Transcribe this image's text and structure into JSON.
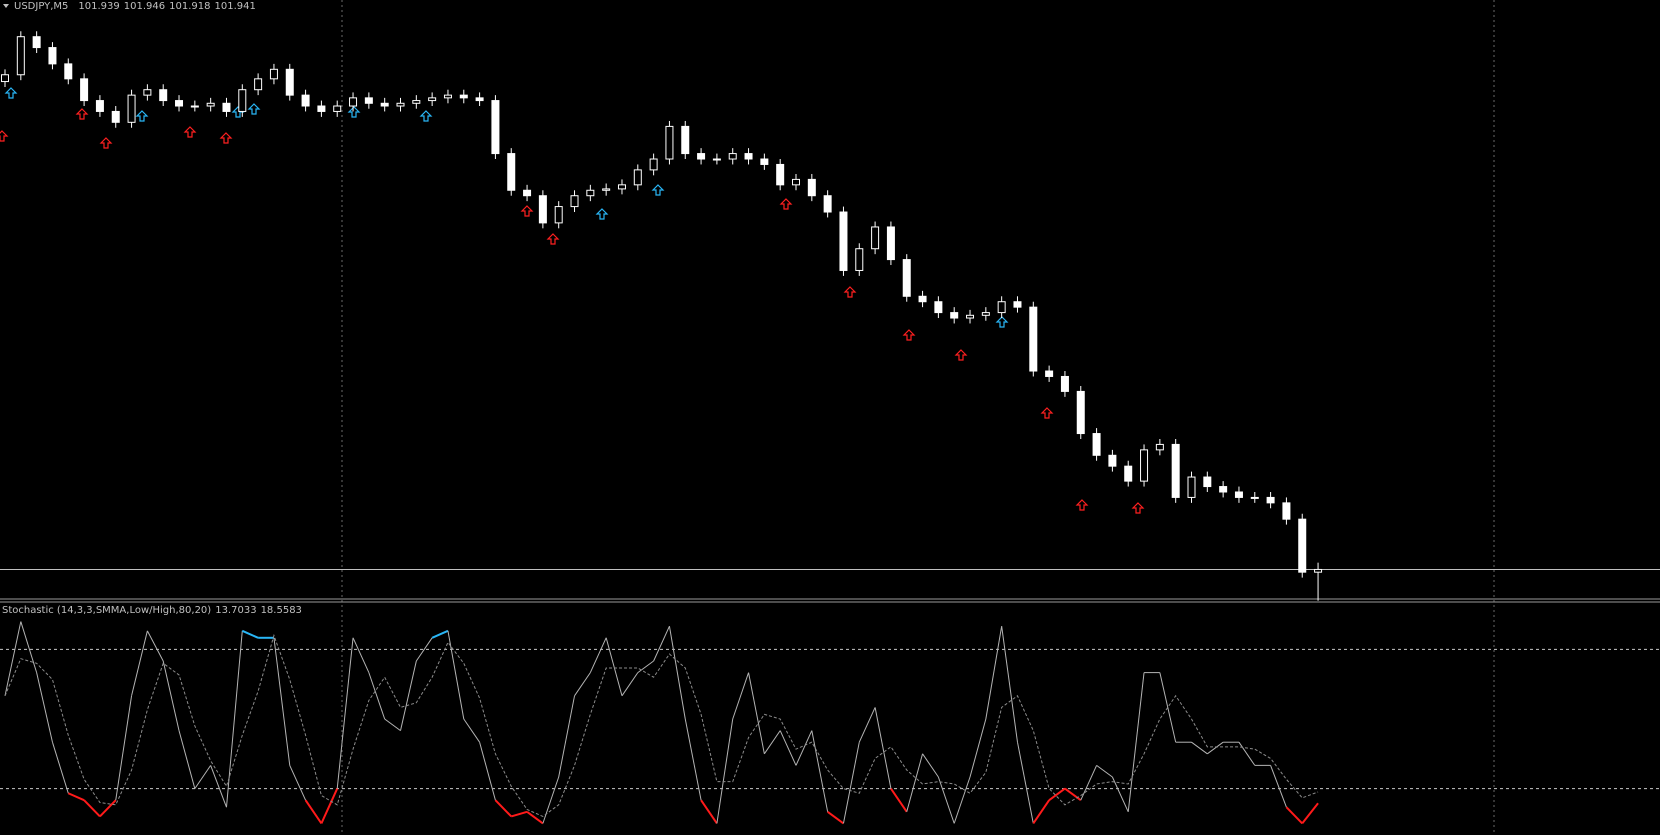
{
  "chart_data": [
    {
      "type": "candlestick",
      "symbol": "USDJPY,M5",
      "open": [
        102.3,
        102.305,
        102.333,
        102.325,
        102.313,
        102.302,
        102.286,
        102.278,
        102.27,
        102.29,
        102.294,
        102.286,
        102.282,
        102.282,
        102.284,
        102.278,
        102.294,
        102.302,
        102.309,
        102.29,
        102.282,
        102.278,
        102.282,
        102.288,
        102.284,
        102.282,
        102.284,
        102.286,
        102.288,
        102.29,
        102.288,
        102.286,
        102.247,
        102.22,
        102.216,
        102.196,
        102.208,
        102.216,
        102.22,
        102.221,
        102.224,
        102.235,
        102.243,
        102.267,
        102.247,
        102.243,
        102.243,
        102.247,
        102.243,
        102.239,
        102.224,
        102.228,
        102.216,
        102.204,
        102.161,
        102.177,
        102.193,
        102.169,
        102.142,
        102.138,
        102.13,
        102.126,
        102.128,
        102.13,
        102.138,
        102.134,
        102.087,
        102.083,
        102.072,
        102.041,
        102.025,
        102.017,
        102.006,
        102.029,
        102.033,
        101.994,
        102.009,
        102.002,
        101.998,
        101.994,
        101.994,
        101.99,
        101.978,
        101.939
      ],
      "high": [
        102.309,
        102.337,
        102.337,
        102.329,
        102.317,
        102.306,
        102.29,
        102.282,
        102.294,
        102.298,
        102.298,
        102.29,
        102.286,
        102.288,
        102.288,
        102.298,
        102.306,
        102.313,
        102.313,
        102.294,
        102.286,
        102.286,
        102.292,
        102.292,
        102.288,
        102.288,
        102.29,
        102.292,
        102.294,
        102.294,
        102.292,
        102.29,
        102.251,
        102.224,
        102.22,
        102.212,
        102.22,
        102.224,
        102.225,
        102.228,
        102.239,
        102.247,
        102.271,
        102.271,
        102.251,
        102.247,
        102.251,
        102.251,
        102.247,
        102.243,
        102.232,
        102.232,
        102.22,
        102.208,
        102.181,
        102.197,
        102.197,
        102.173,
        102.146,
        102.142,
        102.134,
        102.132,
        102.134,
        102.142,
        102.142,
        102.138,
        102.091,
        102.087,
        102.076,
        102.045,
        102.029,
        102.021,
        102.033,
        102.037,
        102.037,
        102.013,
        102.013,
        102.006,
        102.002,
        101.998,
        101.998,
        101.994,
        101.982,
        101.946
      ],
      "low": [
        102.296,
        102.301,
        102.321,
        102.309,
        102.298,
        102.282,
        102.274,
        102.266,
        102.266,
        102.286,
        102.282,
        102.278,
        102.278,
        102.278,
        102.274,
        102.274,
        102.29,
        102.298,
        102.286,
        102.278,
        102.274,
        102.274,
        102.278,
        102.28,
        102.278,
        102.278,
        102.28,
        102.282,
        102.284,
        102.284,
        102.282,
        102.243,
        102.216,
        102.212,
        102.192,
        102.192,
        102.204,
        102.212,
        102.216,
        102.217,
        102.22,
        102.231,
        102.239,
        102.243,
        102.239,
        102.239,
        102.239,
        102.239,
        102.235,
        102.22,
        102.22,
        102.212,
        102.2,
        102.157,
        102.157,
        102.173,
        102.165,
        102.138,
        102.134,
        102.126,
        102.122,
        102.122,
        102.124,
        102.126,
        102.13,
        102.083,
        102.079,
        102.068,
        102.037,
        102.021,
        102.013,
        102.002,
        102.002,
        102.025,
        101.99,
        101.99,
        101.998,
        101.994,
        101.99,
        101.99,
        101.986,
        101.974,
        101.935,
        101.918
      ],
      "close": [
        102.305,
        102.333,
        102.325,
        102.313,
        102.302,
        102.286,
        102.278,
        102.27,
        102.29,
        102.294,
        102.286,
        102.282,
        102.282,
        102.284,
        102.278,
        102.294,
        102.302,
        102.309,
        102.29,
        102.282,
        102.278,
        102.282,
        102.288,
        102.284,
        102.282,
        102.284,
        102.286,
        102.288,
        102.29,
        102.288,
        102.286,
        102.247,
        102.22,
        102.216,
        102.196,
        102.208,
        102.216,
        102.22,
        102.221,
        102.224,
        102.235,
        102.243,
        102.267,
        102.247,
        102.243,
        102.243,
        102.247,
        102.243,
        102.239,
        102.224,
        102.228,
        102.216,
        102.204,
        102.161,
        102.177,
        102.193,
        102.169,
        102.142,
        102.138,
        102.13,
        102.126,
        102.128,
        102.13,
        102.138,
        102.134,
        102.087,
        102.083,
        102.072,
        102.041,
        102.025,
        102.017,
        102.006,
        102.029,
        102.033,
        101.994,
        102.009,
        102.002,
        101.998,
        101.994,
        101.994,
        101.99,
        101.978,
        101.939,
        101.941
      ],
      "ylim": [
        101.92,
        102.36
      ],
      "bull_color": "#000000",
      "bear_color": "#ffffff",
      "wick_color": "#ffffff",
      "bid_line_color": "#c0c0c0"
    },
    {
      "type": "line",
      "title": "Stochastic (14,3,3,SMMA,Low/High,80,20)",
      "series": [
        {
          "color": "#b4b4b4",
          "values": [
            60,
            92,
            70,
            40,
            18,
            15,
            8,
            15,
            60,
            88,
            75,
            45,
            20,
            30,
            12,
            88,
            85,
            85,
            30,
            15,
            5,
            20,
            85,
            70,
            50,
            45,
            75,
            85,
            88,
            50,
            40,
            15,
            8,
            10,
            5,
            25,
            60,
            70,
            85,
            60,
            70,
            75,
            90,
            50,
            15,
            5,
            50,
            70,
            35,
            45,
            30,
            45,
            10,
            5,
            40,
            55,
            20,
            10,
            35,
            25,
            5,
            25,
            50,
            90,
            40,
            5,
            15,
            20,
            15,
            30,
            25,
            10,
            70,
            70,
            40,
            40,
            35,
            40,
            40,
            30,
            30,
            12,
            5,
            13.7033
          ]
        },
        {
          "color": "#8c8c8c",
          "dashed": true,
          "values": [
            60,
            76,
            74,
            67,
            43,
            24,
            14,
            13,
            28,
            54,
            74,
            69,
            47,
            32,
            21,
            43,
            62,
            86,
            67,
            43,
            17,
            13,
            37,
            58,
            68,
            55,
            57,
            68,
            83,
            74,
            59,
            35,
            21,
            11,
            8,
            13,
            30,
            52,
            72,
            72,
            72,
            68,
            78,
            72,
            52,
            23,
            23,
            42,
            52,
            50,
            37,
            40,
            28,
            20,
            18,
            33,
            38,
            28,
            22,
            23,
            22,
            18,
            27,
            55,
            60,
            45,
            20,
            13,
            17,
            22,
            23,
            22,
            35,
            50,
            60,
            50,
            38,
            38,
            38,
            37,
            33,
            24,
            16,
            18.5583
          ]
        }
      ],
      "ylim": [
        0,
        100
      ],
      "levels": [
        80,
        20
      ],
      "upper_color": "#29b6f6",
      "lower_color": "#ff1a1a",
      "level_color": "#c8c8c8"
    }
  ]
}
